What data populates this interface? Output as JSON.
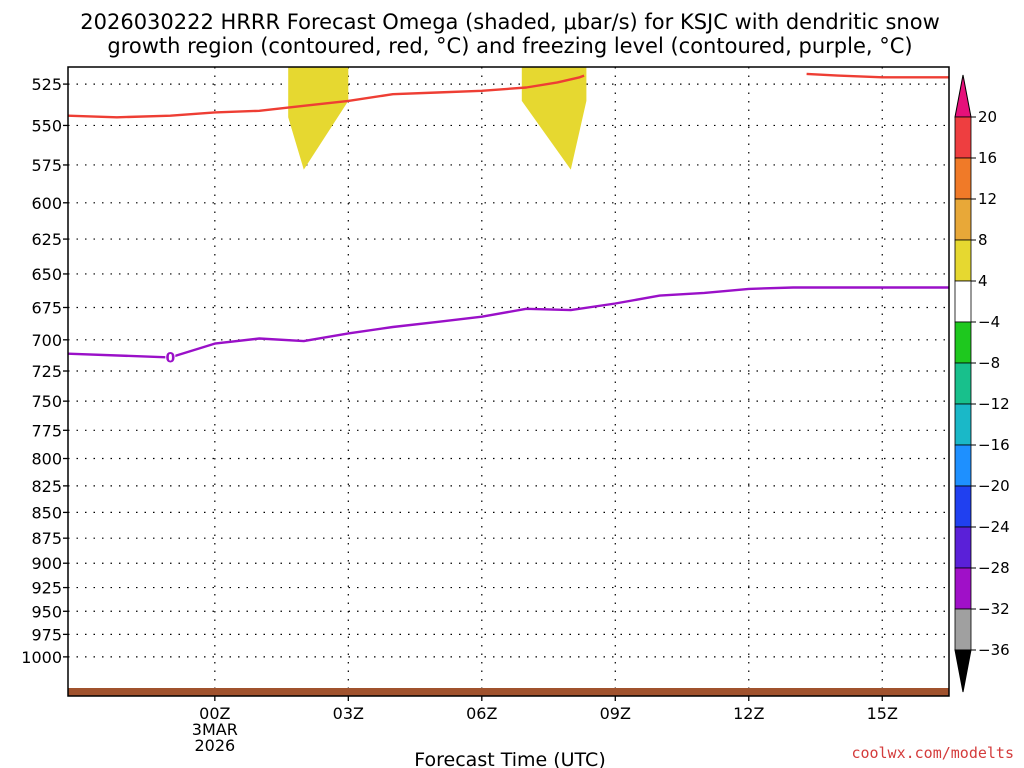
{
  "chart_data": {
    "type": "heatmap",
    "title_lines": [
      "2026030222 HRRR Forecast Omega (shaded, μbar/s) for KSJC with dendritic snow",
      "growth region (contoured, red, °C) and freezing level (contoured, purple, °C)"
    ],
    "xlabel": "Forecast Time (UTC)",
    "credit": "coolwx.com/modelts",
    "x_range_hours": [
      -3.3,
      16.5
    ],
    "y_scale": "log-pressure",
    "y_range_mb": [
      515,
      1045
    ],
    "y_ticks": [
      525,
      550,
      575,
      600,
      625,
      650,
      675,
      700,
      725,
      750,
      775,
      800,
      825,
      850,
      875,
      900,
      925,
      950,
      975,
      1000
    ],
    "x_ticks": [
      {
        "hour": 0,
        "lines": [
          "00Z",
          "3MAR",
          "2026"
        ]
      },
      {
        "hour": 3,
        "lines": [
          "03Z"
        ]
      },
      {
        "hour": 6,
        "lines": [
          "06Z"
        ]
      },
      {
        "hour": 9,
        "lines": [
          "09Z"
        ]
      },
      {
        "hour": 12,
        "lines": [
          "12Z"
        ]
      },
      {
        "hour": 15,
        "lines": [
          "15Z"
        ]
      }
    ],
    "grid": true,
    "omega_shading": [
      {
        "range": "4 to 8",
        "color": "#e6d830",
        "points": [
          [
            1.65,
            515
          ],
          [
            3.0,
            515
          ],
          [
            3.0,
            535
          ],
          [
            2.0,
            578
          ],
          [
            1.65,
            545
          ]
        ]
      },
      {
        "range": "4 to 8",
        "color": "#e6d830",
        "points": [
          [
            6.9,
            515
          ],
          [
            8.35,
            515
          ],
          [
            8.35,
            535
          ],
          [
            8.0,
            578
          ],
          [
            6.9,
            535
          ]
        ]
      }
    ],
    "dgz_contour": {
      "label": "red",
      "color": "#ee3e34",
      "segments": [
        [
          [
            -3.3,
            544
          ],
          [
            -2.2,
            545
          ],
          [
            -1.0,
            544
          ],
          [
            0.0,
            542
          ],
          [
            1.0,
            541
          ],
          [
            2.0,
            538
          ],
          [
            3.0,
            535
          ],
          [
            4.0,
            531
          ],
          [
            5.0,
            530
          ],
          [
            6.0,
            529
          ],
          [
            7.0,
            527
          ],
          [
            7.7,
            524
          ],
          [
            8.2,
            521
          ],
          [
            8.3,
            520
          ]
        ],
        [
          [
            13.3,
            519
          ],
          [
            14.0,
            520
          ],
          [
            15.0,
            521
          ],
          [
            16.5,
            521
          ]
        ]
      ]
    },
    "freezing_level": {
      "label": "0",
      "color": "#9a10c8",
      "points": [
        [
          -3.3,
          711
        ],
        [
          -1.0,
          714
        ],
        [
          0.0,
          703
        ],
        [
          1.0,
          699
        ],
        [
          2.0,
          701
        ],
        [
          3.0,
          695
        ],
        [
          4.0,
          690
        ],
        [
          5.0,
          686
        ],
        [
          6.0,
          682
        ],
        [
          7.0,
          676
        ],
        [
          8.0,
          677
        ],
        [
          9.0,
          672
        ],
        [
          10.0,
          666
        ],
        [
          11.0,
          664
        ],
        [
          12.0,
          661
        ],
        [
          13.0,
          660
        ],
        [
          14.0,
          660
        ],
        [
          15.0,
          660
        ],
        [
          16.5,
          660
        ]
      ]
    },
    "terrain_color": "#a0522d",
    "colorbar": {
      "labels": [
        "20",
        "16",
        "12",
        "8",
        "4",
        "−4",
        "−8",
        "−12",
        "−16",
        "−20",
        "−24",
        "−28",
        "−32",
        "−36"
      ],
      "colors": [
        "#ee3e40",
        "#f07a28",
        "#e8a838",
        "#e6d830",
        "#ffffff",
        "#1ec81e",
        "#18c08c",
        "#1ab8c8",
        "#1e90ff",
        "#2040f0",
        "#5a20d8",
        "#a010c8",
        "#a0a0a0"
      ],
      "top_arrow_color": "#e6107a",
      "bottom_arrow_color": "#000000"
    }
  }
}
